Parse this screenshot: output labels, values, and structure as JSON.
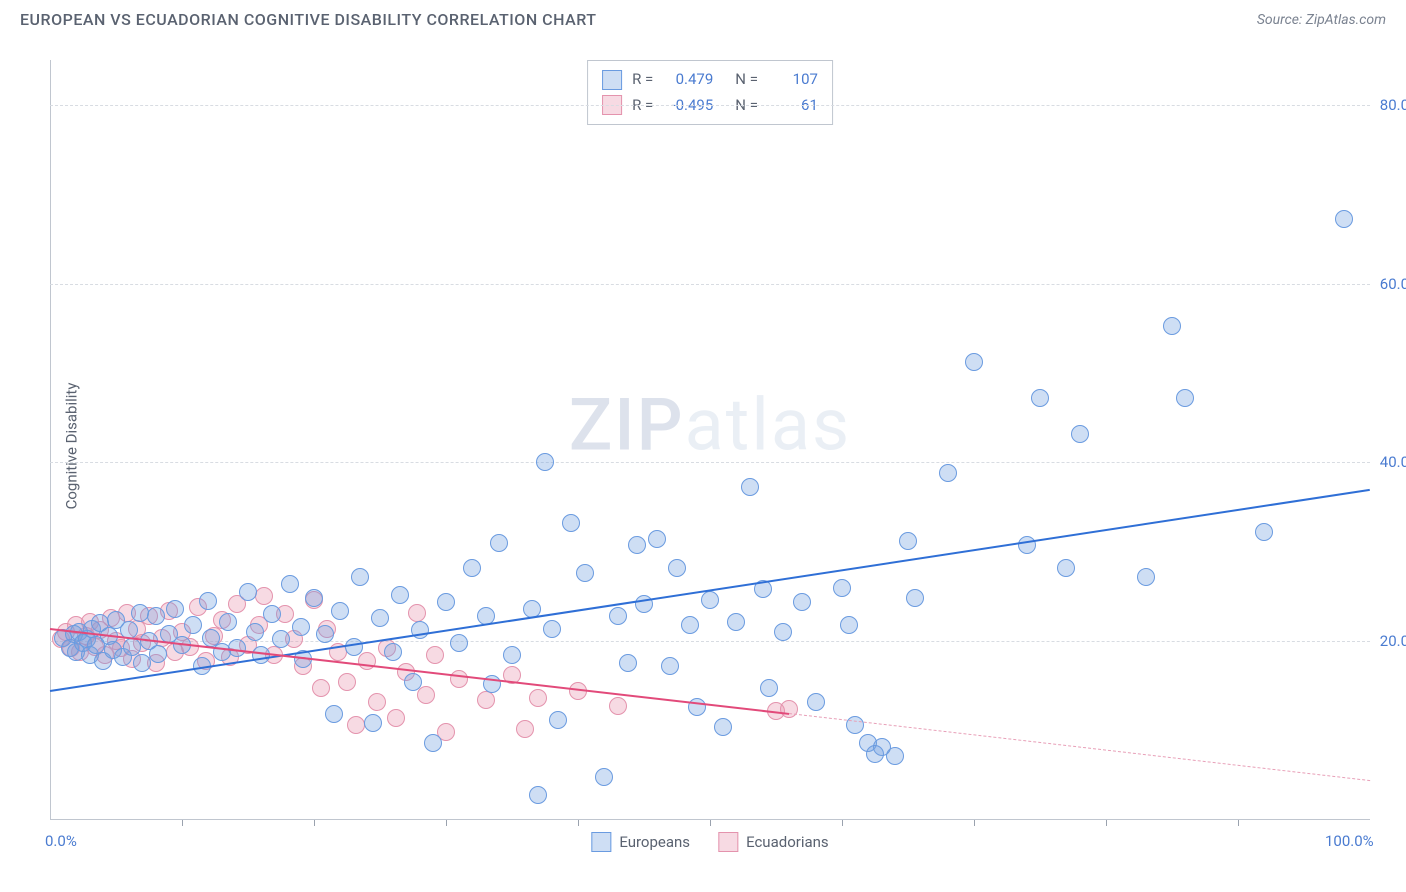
{
  "title": "EUROPEAN VS ECUADORIAN COGNITIVE DISABILITY CORRELATION CHART",
  "source_label": "Source: ZipAtlas.com",
  "y_axis_label": "Cognitive Disability",
  "watermark": {
    "bold": "ZIP",
    "light": "atlas"
  },
  "chart": {
    "type": "scatter",
    "xlim": [
      0,
      100
    ],
    "ylim": [
      0,
      85
    ],
    "x_tick_labels": [
      {
        "value": 0,
        "label": "0.0%"
      },
      {
        "value": 100,
        "label": "100.0%"
      }
    ],
    "x_tick_marks": [
      10,
      20,
      30,
      40,
      50,
      60,
      70,
      80,
      90
    ],
    "y_ticks": [
      {
        "value": 20,
        "label": "20.0%"
      },
      {
        "value": 40,
        "label": "40.0%"
      },
      {
        "value": 60,
        "label": "60.0%"
      },
      {
        "value": 80,
        "label": "80.0%"
      }
    ],
    "grid_values": [
      20,
      40,
      60,
      80
    ],
    "background_color": "#ffffff",
    "grid_color": "#d8dce2",
    "axis_color": "#c0c6cf",
    "tick_label_color": "#4a7bd0",
    "marker_radius": 9,
    "marker_border_width": 1.5
  },
  "series": {
    "europeans": {
      "label": "Europeans",
      "fill": "rgba(114,160,224,0.35)",
      "stroke": "#6a9be0",
      "trend": {
        "x1": 0,
        "y1": 14.5,
        "x2": 100,
        "y2": 37,
        "color": "#2f6fd6",
        "width": 2.5,
        "dash": false
      },
      "points": [
        [
          1,
          20.4
        ],
        [
          1.5,
          19.2
        ],
        [
          1.8,
          20.8
        ],
        [
          2,
          18.8
        ],
        [
          2.2,
          21
        ],
        [
          2.5,
          19.8
        ],
        [
          2.8,
          20.2
        ],
        [
          3,
          18.5
        ],
        [
          3.2,
          21.4
        ],
        [
          3.5,
          19.6
        ],
        [
          3.8,
          22
        ],
        [
          4,
          17.8
        ],
        [
          4.5,
          20.6
        ],
        [
          4.8,
          19
        ],
        [
          5,
          22.4
        ],
        [
          5.5,
          18.2
        ],
        [
          6,
          21.2
        ],
        [
          6.2,
          19.4
        ],
        [
          6.8,
          23.2
        ],
        [
          7,
          17.6
        ],
        [
          7.5,
          20
        ],
        [
          8,
          22.8
        ],
        [
          8.2,
          18.6
        ],
        [
          9,
          20.8
        ],
        [
          9.5,
          23.6
        ],
        [
          10,
          19.6
        ],
        [
          10.8,
          21.8
        ],
        [
          11.5,
          17.2
        ],
        [
          12,
          24.5
        ],
        [
          12.2,
          20.4
        ],
        [
          13,
          18.8
        ],
        [
          13.5,
          22.2
        ],
        [
          14.2,
          19.2
        ],
        [
          15,
          25.5
        ],
        [
          15.5,
          21
        ],
        [
          16,
          18.4
        ],
        [
          16.8,
          23
        ],
        [
          17.5,
          20.2
        ],
        [
          18.2,
          26.4
        ],
        [
          19,
          21.6
        ],
        [
          19.2,
          18
        ],
        [
          20,
          24.8
        ],
        [
          20.8,
          20.8
        ],
        [
          21.5,
          11.8
        ],
        [
          22,
          23.4
        ],
        [
          23,
          19.4
        ],
        [
          23.5,
          27.2
        ],
        [
          24.5,
          10.8
        ],
        [
          25,
          22.6
        ],
        [
          26,
          18.8
        ],
        [
          26.5,
          25.2
        ],
        [
          27.5,
          15.4
        ],
        [
          28,
          21.2
        ],
        [
          29,
          8.6
        ],
        [
          30,
          24.4
        ],
        [
          31,
          19.8
        ],
        [
          32,
          28.2
        ],
        [
          33,
          22.8
        ],
        [
          33.5,
          15.2
        ],
        [
          34,
          31
        ],
        [
          35,
          18.4
        ],
        [
          36.5,
          23.6
        ],
        [
          37.5,
          40
        ],
        [
          38,
          21.4
        ],
        [
          38.5,
          11.2
        ],
        [
          39.5,
          33.2
        ],
        [
          40.5,
          27.6
        ],
        [
          42,
          4.8
        ],
        [
          43,
          22.8
        ],
        [
          43.8,
          17.6
        ],
        [
          44.5,
          30.8
        ],
        [
          45,
          24.2
        ],
        [
          46,
          31.4
        ],
        [
          47,
          17.2
        ],
        [
          47.5,
          28.2
        ],
        [
          48.5,
          21.8
        ],
        [
          49,
          12.6
        ],
        [
          50,
          24.6
        ],
        [
          51,
          10.4
        ],
        [
          52,
          22.2
        ],
        [
          53,
          37.2
        ],
        [
          54,
          25.8
        ],
        [
          54.5,
          14.8
        ],
        [
          55.5,
          21
        ],
        [
          57,
          24.4
        ],
        [
          58,
          13.2
        ],
        [
          60,
          26
        ],
        [
          60.5,
          21.8
        ],
        [
          61,
          10.6
        ],
        [
          62,
          8.6
        ],
        [
          64,
          7.2
        ],
        [
          65.5,
          24.8
        ],
        [
          65,
          31.2
        ],
        [
          68,
          38.8
        ],
        [
          70,
          51.2
        ],
        [
          74,
          30.8
        ],
        [
          75,
          47.2
        ],
        [
          77,
          28.2
        ],
        [
          78,
          43.2
        ],
        [
          83,
          27.2
        ],
        [
          85,
          55.2
        ],
        [
          86,
          47.2
        ],
        [
          92,
          32.2
        ],
        [
          98,
          67.2
        ],
        [
          63,
          8.2
        ],
        [
          62.5,
          7.4
        ],
        [
          37,
          2.8
        ]
      ]
    },
    "ecuadorians": {
      "label": "Ecuadorians",
      "fill": "rgba(232,150,175,0.35)",
      "stroke": "#e493ad",
      "trend": {
        "x1": 0,
        "y1": 21.5,
        "x2": 56,
        "y2": 12,
        "color": "#e24a7a",
        "width": 2,
        "dash": false
      },
      "trend_ext": {
        "x1": 56,
        "y1": 12,
        "x2": 100,
        "y2": 4.5,
        "color": "#e8a0b8",
        "width": 1,
        "dash": true
      },
      "points": [
        [
          0.8,
          20.2
        ],
        [
          1.2,
          21
        ],
        [
          1.6,
          19.2
        ],
        [
          2,
          21.8
        ],
        [
          2.3,
          18.8
        ],
        [
          2.7,
          20.6
        ],
        [
          3,
          22.2
        ],
        [
          3.4,
          19.4
        ],
        [
          3.8,
          21.2
        ],
        [
          4.2,
          18.4
        ],
        [
          4.6,
          22.6
        ],
        [
          5,
          20
        ],
        [
          5.4,
          19.2
        ],
        [
          5.8,
          23.2
        ],
        [
          6.2,
          18
        ],
        [
          6.6,
          21.4
        ],
        [
          7,
          19.8
        ],
        [
          7.5,
          22.8
        ],
        [
          8,
          17.6
        ],
        [
          8.5,
          20.4
        ],
        [
          9,
          23.4
        ],
        [
          9.5,
          18.8
        ],
        [
          10,
          21
        ],
        [
          10.6,
          19.4
        ],
        [
          11.2,
          23.8
        ],
        [
          11.8,
          17.8
        ],
        [
          12.4,
          20.6
        ],
        [
          13,
          22.4
        ],
        [
          13.6,
          18.2
        ],
        [
          14.2,
          24.2
        ],
        [
          15,
          19.6
        ],
        [
          15.8,
          21.8
        ],
        [
          16.2,
          25
        ],
        [
          17,
          18.4
        ],
        [
          17.8,
          23
        ],
        [
          18.5,
          20.2
        ],
        [
          19.2,
          17.2
        ],
        [
          20,
          24.6
        ],
        [
          20.5,
          14.8
        ],
        [
          21,
          21.4
        ],
        [
          21.8,
          18.8
        ],
        [
          22.5,
          15.4
        ],
        [
          23.2,
          10.6
        ],
        [
          24,
          17.8
        ],
        [
          24.8,
          13.2
        ],
        [
          25.5,
          19.2
        ],
        [
          26.2,
          11.4
        ],
        [
          27,
          16.6
        ],
        [
          27.8,
          23.2
        ],
        [
          28.5,
          14
        ],
        [
          29.2,
          18.4
        ],
        [
          30,
          9.8
        ],
        [
          31,
          15.8
        ],
        [
          33,
          13.4
        ],
        [
          35,
          16.2
        ],
        [
          36,
          10.2
        ],
        [
          37,
          13.6
        ],
        [
          40,
          14.4
        ],
        [
          43,
          12.8
        ],
        [
          55,
          12.2
        ],
        [
          56,
          12.4
        ]
      ]
    }
  },
  "stats_box": {
    "rows": [
      {
        "swatch_fill": "rgba(114,160,224,0.35)",
        "swatch_stroke": "#6a9be0",
        "r_label": "R =",
        "r_val": "0.479",
        "n_label": "N =",
        "n_val": "107"
      },
      {
        "swatch_fill": "rgba(232,150,175,0.35)",
        "swatch_stroke": "#e493ad",
        "r_label": "R =",
        "r_val": "-0.495",
        "n_label": "N =",
        "n_val": "61"
      }
    ]
  },
  "legend_bottom": [
    {
      "fill": "rgba(114,160,224,0.35)",
      "stroke": "#6a9be0",
      "label": "Europeans"
    },
    {
      "fill": "rgba(232,150,175,0.35)",
      "stroke": "#e493ad",
      "label": "Ecuadorians"
    }
  ]
}
